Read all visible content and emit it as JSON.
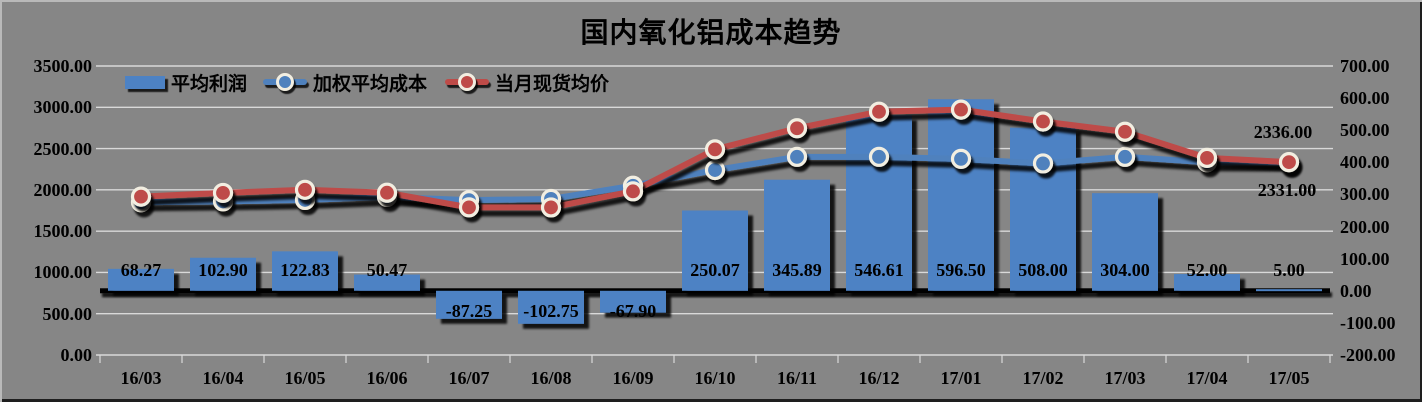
{
  "title": "国内氧化铝成本趋势",
  "legend": [
    {
      "label": "平均利润",
      "swatch": "bar"
    },
    {
      "label": "加权平均成本",
      "swatch": "cost-line"
    },
    {
      "label": "当月现货均价",
      "swatch": "price-line"
    }
  ],
  "colors": {
    "background": "#868686",
    "gridline": "#d9d9d9",
    "bar": "#4d82c4",
    "cost_line": "#4f81bd",
    "price_line": "#be4b48",
    "marker_ring": "#f2eee1",
    "shadow": "#000000",
    "text": "#000000"
  },
  "chart_data": {
    "type": "combo-bar-line",
    "title": "国内氧化铝成本趋势",
    "grid": "horizontal",
    "legend_position": "top-left-inside",
    "categories": [
      "16/03",
      "16/04",
      "16/05",
      "16/06",
      "16/07",
      "16/08",
      "16/09",
      "16/10",
      "16/11",
      "16/12",
      "17/01",
      "17/02",
      "17/03",
      "17/04",
      "17/05"
    ],
    "series": [
      {
        "name": "平均利润",
        "type": "bar",
        "axis": "right",
        "values": [
          68.27,
          102.9,
          122.83,
          50.47,
          -87.25,
          -102.75,
          -67.9,
          250.07,
          345.89,
          546.61,
          596.5,
          508.0,
          304.0,
          52.0,
          5.0
        ],
        "data_labels": "inside-base, two decimals"
      },
      {
        "name": "加权平均成本",
        "type": "line",
        "axis": "left",
        "values": [
          1850,
          1860,
          1878,
          1915,
          1875,
          1890,
          2050,
          2240,
          2400,
          2400,
          2375,
          2320,
          2400,
          2335,
          2331
        ]
      },
      {
        "name": "当月现货均价",
        "type": "line",
        "axis": "left",
        "values": [
          1918.27,
          1962.9,
          2000.83,
          1965.47,
          1787.75,
          1787.25,
          1982.1,
          2490.07,
          2745.89,
          2946.61,
          2971.5,
          2828.0,
          2704.0,
          2387.0,
          2336.0
        ]
      }
    ],
    "left_axis": {
      "min": 0,
      "max": 3500,
      "ticks": [
        "3500.00",
        "3000.00",
        "2500.00",
        "2000.00",
        "1500.00",
        "1000.00",
        "500.00",
        "0.00"
      ]
    },
    "right_axis": {
      "min": -200,
      "max": 700,
      "ticks": [
        "700.00",
        "600.00",
        "500.00",
        "400.00",
        "300.00",
        "200.00",
        "100.00",
        "0.00",
        "-100.00",
        "-200.00"
      ]
    },
    "annotations": [
      {
        "text": "2336.00",
        "series": "当月现货均价",
        "category": "17/05",
        "placement": "above-last-point"
      },
      {
        "text": "2331.00",
        "series": "加权平均成本",
        "category": "17/05",
        "placement": "below-last-point"
      }
    ]
  }
}
